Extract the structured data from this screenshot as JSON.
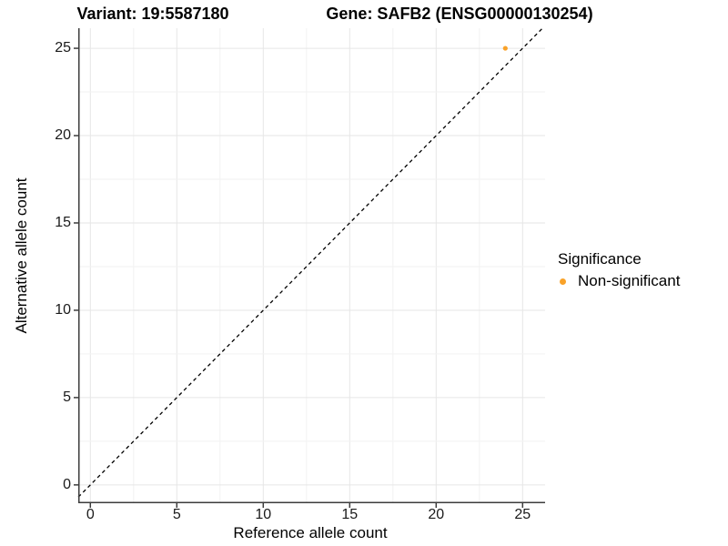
{
  "chart_data": {
    "type": "scatter",
    "titles": {
      "left": "Variant: 19:5587180",
      "right": "Gene: SAFB2 (ENSG00000130254)"
    },
    "xlabel": "Reference allele count",
    "ylabel": "Alternative allele count",
    "xticks": [
      0,
      5,
      10,
      15,
      20,
      25
    ],
    "yticks": [
      0,
      5,
      10,
      15,
      20,
      25
    ],
    "xlim": [
      -0.7,
      26.3
    ],
    "ylim": [
      -1.05,
      26.15
    ],
    "minor_grid_step": 2.5,
    "grid": "major+minor",
    "points": [
      {
        "x": 24,
        "y": 25,
        "series": "Non-significant"
      }
    ],
    "identity_line": {
      "equation": "y = x",
      "style": "dashed",
      "color": "#000000"
    },
    "legend": {
      "title": "Significance",
      "position": "right",
      "items": [
        {
          "label": "Non-significant",
          "color": "#F9A229"
        }
      ]
    },
    "colors": {
      "axis_line": "#3c3c3c",
      "grid_major": "#e6e6e6",
      "grid_minor": "#f2f2f2",
      "tick_mark": "#3c3c3c",
      "tick_text": "#1a1a1a",
      "point_default": "#F9A229"
    }
  }
}
